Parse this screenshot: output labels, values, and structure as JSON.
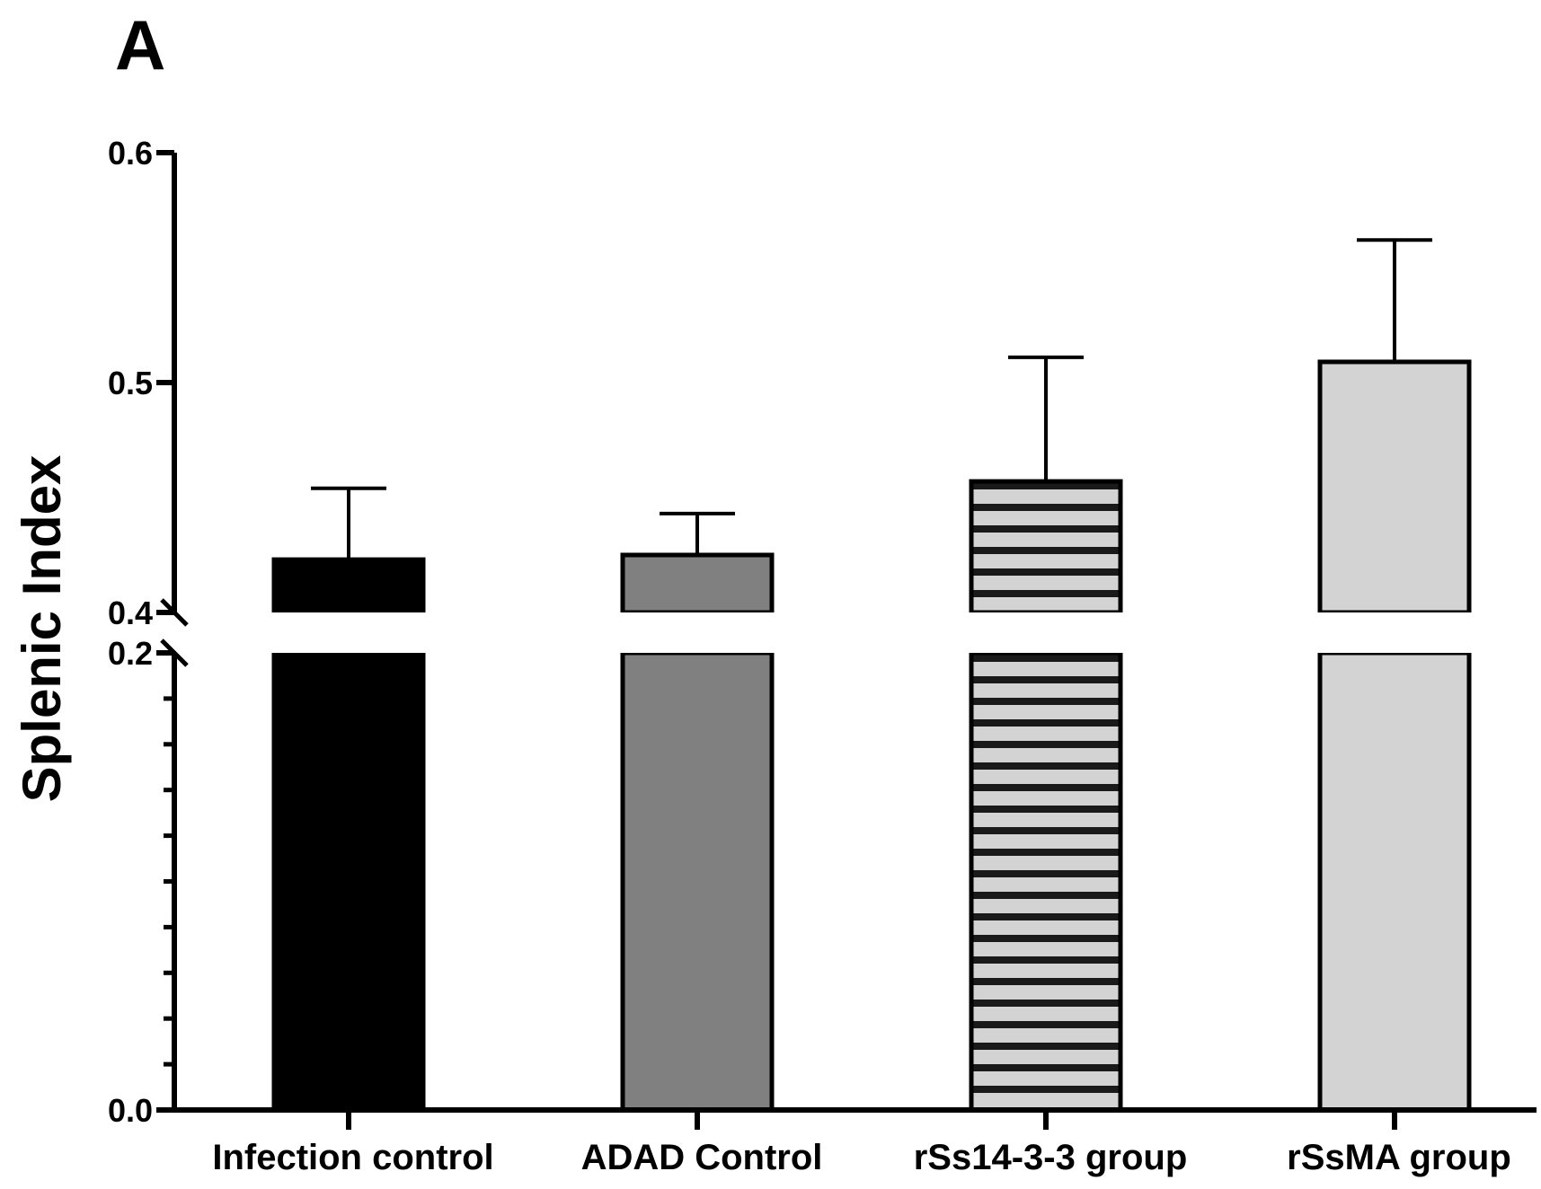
{
  "panel_label": "A",
  "chart_data": {
    "type": "bar",
    "ylabel": "Splenic Index",
    "xlabel": "",
    "categories": [
      "Infection control",
      "ADAD Control",
      "rSs14-3-3 group",
      "rSsMA group"
    ],
    "values": [
      0.423,
      0.425,
      0.457,
      0.509
    ],
    "errors": [
      0.031,
      0.018,
      0.054,
      0.053
    ],
    "error_direction": "upper",
    "y_axis_broken": true,
    "y_segments": [
      {
        "range": [
          0.0,
          0.2
        ],
        "ticks": [
          0.0,
          0.2
        ],
        "tick_labels": [
          "0.0",
          "0.2"
        ],
        "minor_step": 0.02
      },
      {
        "range": [
          0.4,
          0.6
        ],
        "ticks": [
          0.4,
          0.5,
          0.6
        ],
        "tick_labels": [
          "0.4",
          "0.5",
          "0.6"
        ]
      }
    ],
    "bar_styles": [
      {
        "fill": "#000000",
        "pattern": "solid"
      },
      {
        "fill": "#808080",
        "pattern": "solid"
      },
      {
        "fill": "#d3d3d3",
        "pattern": "horizontal-stripes",
        "stripe_color": "#1a1a1a"
      },
      {
        "fill": "#d3d3d3",
        "pattern": "solid"
      }
    ],
    "grid": false,
    "legend": "none"
  }
}
